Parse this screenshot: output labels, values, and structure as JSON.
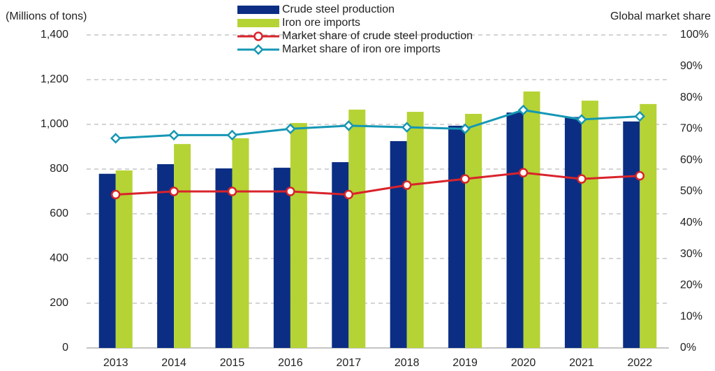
{
  "chart_data": {
    "type": "bar_line",
    "y_label": "(Millions of tons)",
    "y2_label": "Global market share",
    "categories": [
      "2013",
      "2014",
      "2015",
      "2016",
      "2017",
      "2018",
      "2019",
      "2020",
      "2021",
      "2022"
    ],
    "series": [
      {
        "name": "Crude steel production",
        "kind": "bar",
        "color": "#0b2e84",
        "values": [
          779,
          822,
          803,
          806,
          831,
          925,
          994,
          1053,
          1033,
          1013
        ]
      },
      {
        "name": "Iron ore imports",
        "kind": "bar",
        "color": "#b5d334",
        "values": [
          794,
          912,
          938,
          1006,
          1066,
          1056,
          1047,
          1147,
          1106,
          1091
        ]
      },
      {
        "name": "Market share of crude steel production",
        "kind": "line",
        "marker": "circle",
        "axis": "y2",
        "color": "#d9232b",
        "values": [
          49,
          50,
          50,
          50,
          49,
          52,
          54,
          56,
          54,
          55
        ]
      },
      {
        "name": "Market share of iron ore imports",
        "kind": "line",
        "marker": "diamond",
        "axis": "y2",
        "color": "#1597b5",
        "values": [
          67,
          68,
          68,
          70,
          71,
          70.5,
          70,
          76,
          73,
          74
        ]
      }
    ],
    "ylim": [
      0,
      1400
    ],
    "yticks": [
      0,
      200,
      400,
      600,
      800,
      {
        "value": 1000,
        "label": "1,000"
      },
      {
        "value": 1200,
        "label": "1,200"
      },
      {
        "value": 1400,
        "label": "1,400"
      }
    ],
    "y2lim": [
      0,
      100
    ],
    "y2ticks": [
      {
        "value": 0,
        "label": "0%"
      },
      {
        "value": 10,
        "label": "10%"
      },
      {
        "value": 20,
        "label": "20%"
      },
      {
        "value": 30,
        "label": "30%"
      },
      {
        "value": 40,
        "label": "40%"
      },
      {
        "value": 50,
        "label": "50%"
      },
      {
        "value": 60,
        "label": "60%"
      },
      {
        "value": 70,
        "label": "70%"
      },
      {
        "value": 80,
        "label": "80%"
      },
      {
        "value": 90,
        "label": "90%"
      },
      {
        "value": 100,
        "label": "100%"
      }
    ],
    "grid": true
  }
}
